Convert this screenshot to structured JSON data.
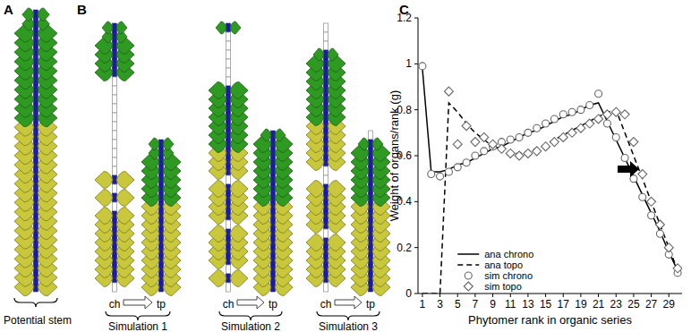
{
  "chart_data": {
    "type": "line",
    "x_label": "Phytomer rank in organic series",
    "y_label": "Weight of organs/rank (g)",
    "x": [
      1,
      2,
      3,
      4,
      5,
      6,
      7,
      8,
      9,
      10,
      11,
      12,
      13,
      14,
      15,
      16,
      17,
      18,
      19,
      20,
      21,
      22,
      23,
      24,
      25,
      26,
      27,
      28,
      29,
      30
    ],
    "series": [
      {
        "name": "ana chrono",
        "type": "line",
        "line_style": "solid",
        "color": "#000000",
        "values": [
          0.98,
          0.53,
          0.53,
          0.54,
          0.56,
          0.57,
          0.59,
          0.61,
          0.63,
          0.64,
          0.66,
          0.68,
          0.7,
          0.71,
          0.73,
          0.75,
          0.77,
          0.78,
          0.8,
          0.82,
          0.83,
          0.75,
          0.67,
          0.59,
          0.51,
          0.43,
          0.35,
          0.27,
          0.18,
          0.1
        ]
      },
      {
        "name": "ana topo",
        "type": "line",
        "line_style": "dashed",
        "color": "#000000",
        "values": [
          0,
          0,
          0,
          0.83,
          0.79,
          0.74,
          0.7,
          0.67,
          0.64,
          0.62,
          0.61,
          0.61,
          0.62,
          0.63,
          0.65,
          0.67,
          0.69,
          0.71,
          0.73,
          0.75,
          0.77,
          0.79,
          0.8,
          0.7,
          0.6,
          0.5,
          0.4,
          0.3,
          0.2,
          0.1
        ]
      },
      {
        "name": "sim chrono",
        "type": "scatter",
        "marker": "circle",
        "color": "#666666",
        "values": [
          0.99,
          0.52,
          0.51,
          0.53,
          0.55,
          0.57,
          0.6,
          0.62,
          0.64,
          0.66,
          0.67,
          0.68,
          0.7,
          0.72,
          0.74,
          0.76,
          0.78,
          0.79,
          0.8,
          0.82,
          0.87,
          0.74,
          0.68,
          0.59,
          0.5,
          0.42,
          0.34,
          0.26,
          0.17,
          0.09
        ]
      },
      {
        "name": "sim topo",
        "type": "scatter",
        "marker": "diamond",
        "color": "#666666",
        "values": [
          null,
          null,
          null,
          0.88,
          0.65,
          0.73,
          0.66,
          0.68,
          0.65,
          0.63,
          0.61,
          0.6,
          0.61,
          0.62,
          0.64,
          0.66,
          0.68,
          0.7,
          0.72,
          0.74,
          0.76,
          0.78,
          0.79,
          0.78,
          0.66,
          0.52,
          0.4,
          0.3,
          0.2,
          0.11
        ]
      }
    ],
    "xlim": [
      0.5,
      30.5
    ],
    "xticks": [
      1,
      3,
      5,
      7,
      9,
      11,
      13,
      15,
      17,
      19,
      21,
      23,
      25,
      27,
      29
    ],
    "ylim": [
      0,
      1.2
    ],
    "yticks": [
      0,
      0.2,
      0.4,
      0.6,
      0.8,
      1,
      1.2
    ],
    "grid": false,
    "legend": "lower left"
  },
  "diagram": {
    "panels": [
      {
        "label": "A",
        "caption": "Potential stem"
      },
      {
        "label": "B",
        "simulations": [
          {
            "caption": "Simulation 1",
            "stems": [
              "ch",
              "tp"
            ]
          },
          {
            "caption": "Simulation 2",
            "stems": [
              "ch",
              "tp"
            ]
          },
          {
            "caption": "Simulation 3",
            "stems": [
              "ch",
              "tp"
            ]
          }
        ]
      },
      {
        "label": "C"
      }
    ]
  }
}
